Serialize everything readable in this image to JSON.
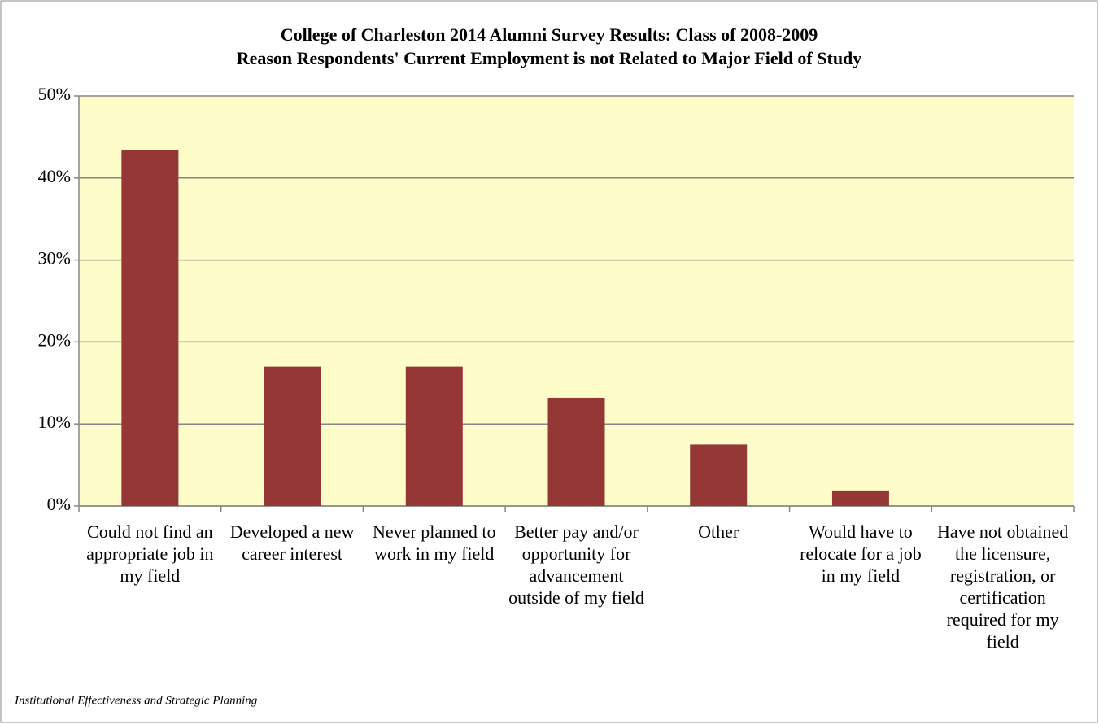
{
  "chart_data": {
    "type": "bar",
    "title": "College of Charleston 2014 Alumni Survey Results: Class of 2008-2009",
    "subtitle": "Reason Respondents' Current Employment is not Related to Major Field of Study",
    "categories": [
      "Could not find an appropriate job in my field",
      "Developed a new career interest",
      "Never planned to work in my field",
      "Better pay and/or opportunity for advancement outside of my field",
      "Other",
      "Would have to relocate for a job in my field",
      "Have not obtained the licensure, registration, or certification required for my field"
    ],
    "values": [
      43.4,
      17.0,
      17.0,
      13.2,
      7.5,
      1.9,
      0
    ],
    "color": "#953735",
    "ylim": [
      0,
      50
    ],
    "yticks": [
      {
        "value": 0,
        "label": "0%"
      },
      {
        "value": 10,
        "label": "10%"
      },
      {
        "value": 20,
        "label": "20%"
      },
      {
        "value": 30,
        "label": "30%"
      },
      {
        "value": 40,
        "label": "40%"
      },
      {
        "value": 50,
        "label": "50%"
      }
    ],
    "grid": true,
    "note": "Institutional Effectiveness and Strategic Planning"
  }
}
